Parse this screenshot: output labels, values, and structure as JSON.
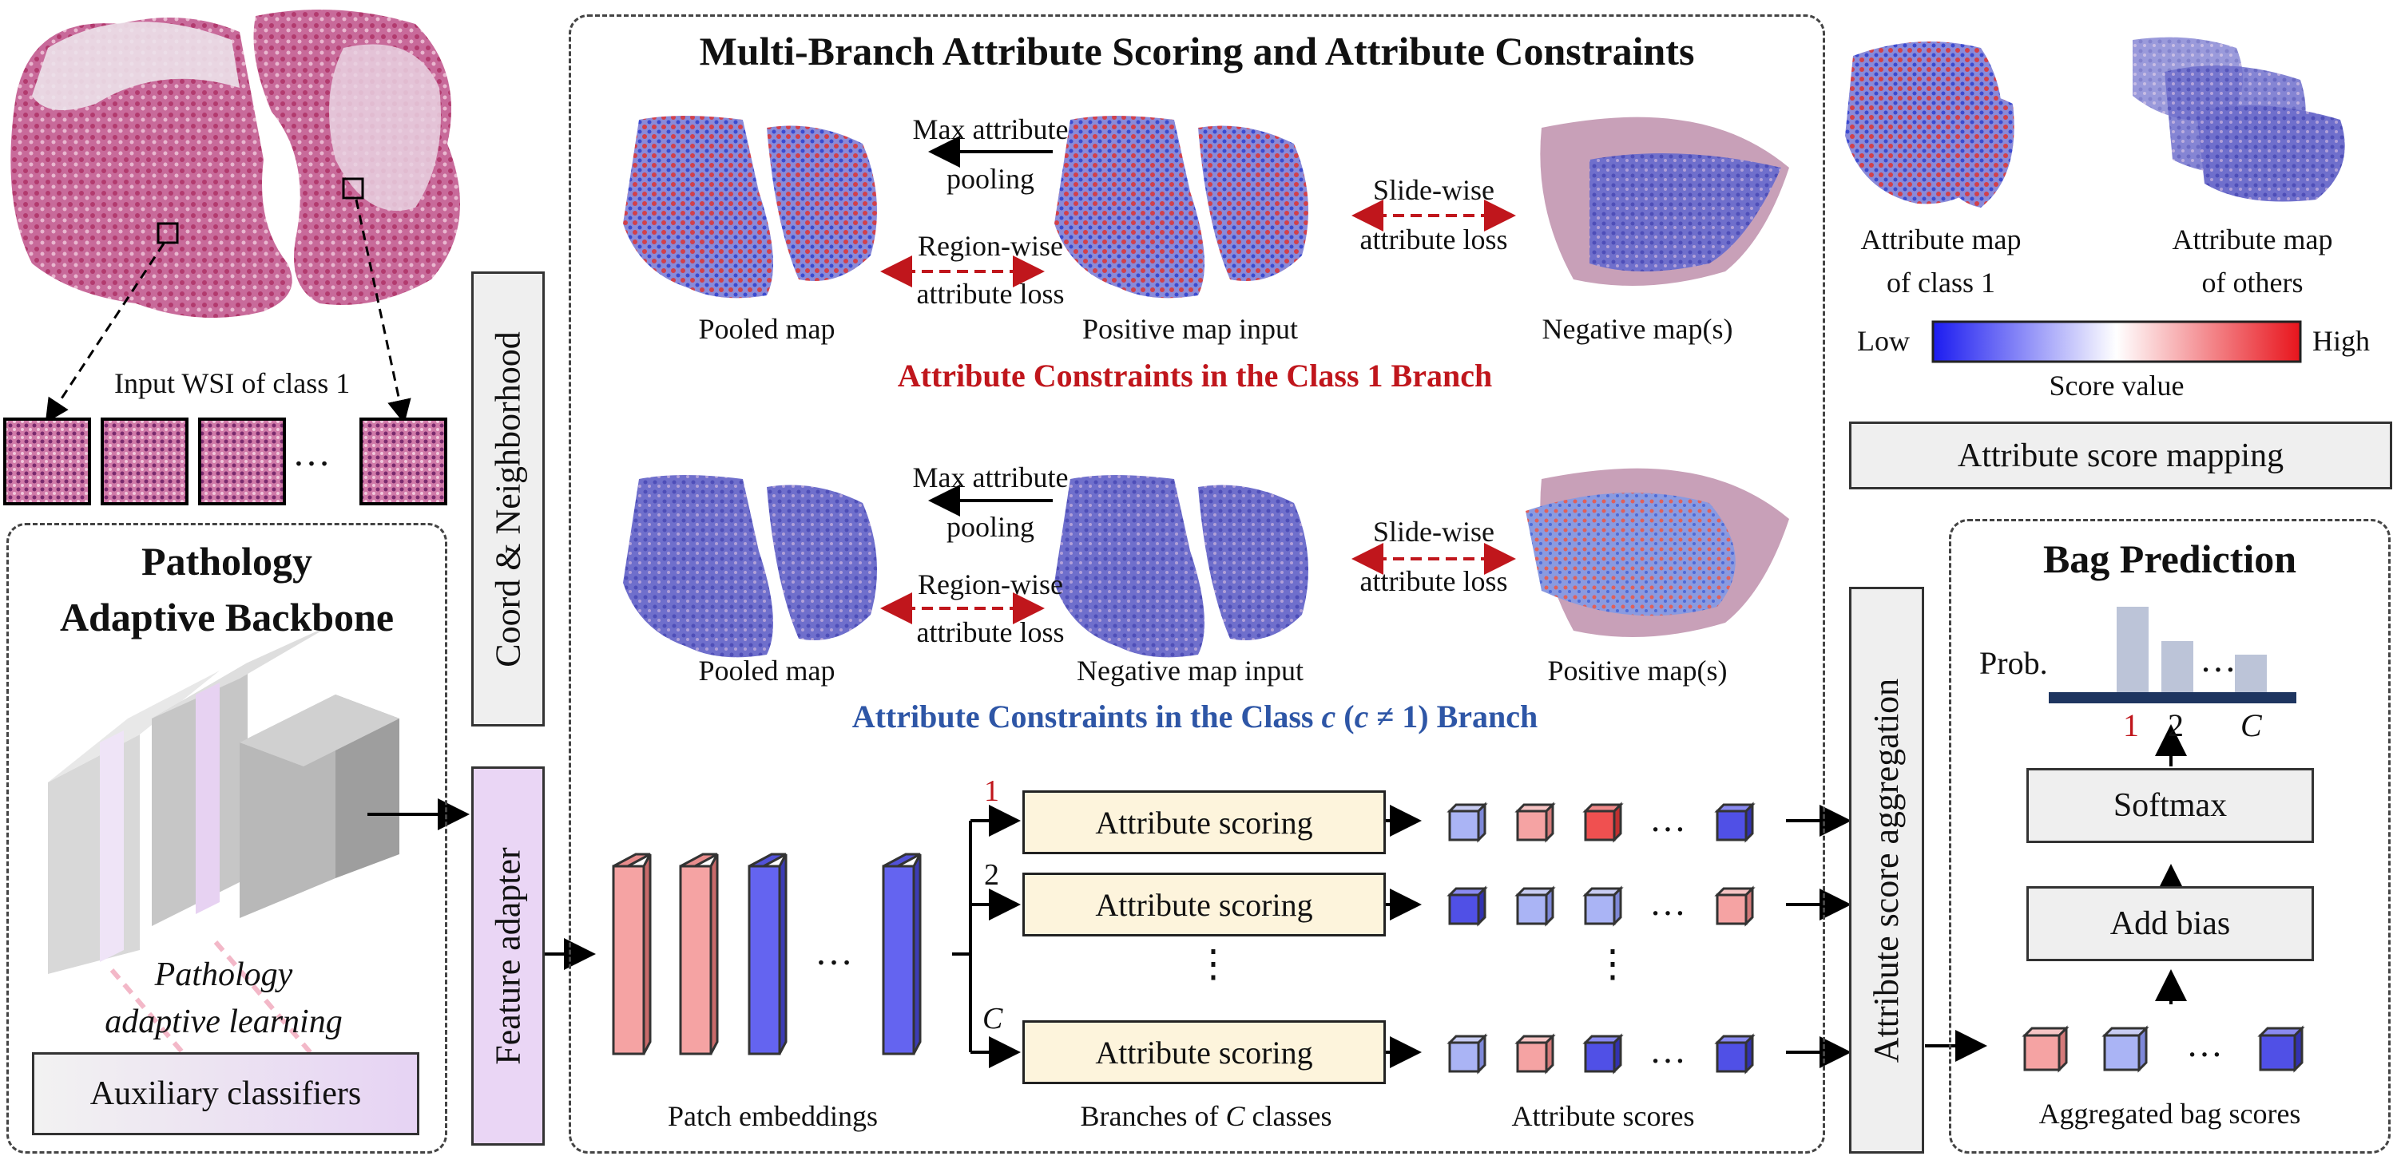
{
  "wsi": {
    "caption": "Input WSI of class 1",
    "ellipsis": "…"
  },
  "backbone": {
    "title_line1": "Pathology",
    "title_line2": "Adaptive Backbone",
    "learning_line1": "Pathology",
    "learning_line2": "adaptive learning",
    "aux": "Auxiliary classifiers"
  },
  "coord_label": "Coord & Neighborhood",
  "feature_adapter": "Feature adapter",
  "center": {
    "title": "Multi-Branch Attribute Scoring and Attribute Constraints",
    "class1": {
      "max_pool_line1": "Max attribute",
      "max_pool_line2": "pooling",
      "region_line1": "Region-wise",
      "region_line2": "attribute loss",
      "slide_line1": "Slide-wise",
      "slide_line2": "attribute loss",
      "pooled": "Pooled map",
      "input": "Positive map input",
      "other": "Negative map(s)",
      "caption": "Attribute Constraints in the Class 1 Branch"
    },
    "classc": {
      "max_pool_line1": "Max attribute",
      "max_pool_line2": "pooling",
      "region_line1": "Region-wise",
      "region_line2": "attribute loss",
      "slide_line1": "Slide-wise",
      "slide_line2": "attribute loss",
      "pooled": "Pooled map",
      "input": "Negative map input",
      "other": "Positive map(s)",
      "caption_pre": "Attribute Constraints in the Class ",
      "caption_var": "c",
      "caption_mid": " (",
      "caption_var2": "c",
      "caption_post": " ≠ 1) Branch"
    }
  },
  "flow": {
    "patch_embeddings": "Patch embeddings",
    "branch_1": "1",
    "branch_2": "2",
    "branch_c": "C",
    "scoring": "Attribute scoring",
    "vdots": "⋮",
    "branches_pre": "Branches of ",
    "branches_var": "C",
    "branches_post": " classes",
    "attribute_scores": "Attribute scores",
    "ellipsis": "…"
  },
  "right": {
    "map_class1_line1": "Attribute map",
    "map_class1_line2": "of class 1",
    "map_others_line1": "Attribute map",
    "map_others_line2": "of others",
    "low": "Low",
    "high": "High",
    "score_value": "Score value",
    "mapping": "Attribute score mapping",
    "aggregation": "Attribute score aggregation"
  },
  "bag": {
    "title": "Bag Prediction",
    "prob": "Prob.",
    "tick_1": "1",
    "tick_2": "2",
    "tick_c": "C",
    "dots": "…",
    "softmax": "Softmax",
    "add_bias": "Add bias",
    "aggregated": "Aggregated bag scores"
  },
  "colors": {
    "red": "#c0161c",
    "blue": "#2e56a6",
    "pink_box": "#fdeaea",
    "blue_box": "#eceefb",
    "cream": "#fdf4dc",
    "lavender": "#ead6f5",
    "gray_box": "#efefef"
  }
}
